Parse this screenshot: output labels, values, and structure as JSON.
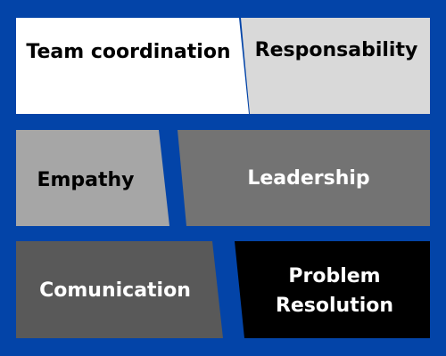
{
  "background_color": "#0344A8",
  "tiles": [
    {
      "id": "team-coordination",
      "label": "Team coordination",
      "fill": "#FFFFFF",
      "text_color": "#000000"
    },
    {
      "id": "responsability",
      "label": "Responsability",
      "fill": "#D9D9D9",
      "text_color": "#000000"
    },
    {
      "id": "empathy",
      "label": "Empathy",
      "fill": "#A6A6A6",
      "text_color": "#000000"
    },
    {
      "id": "leadership",
      "label": "Leadership",
      "fill": "#737373",
      "text_color": "#FFFFFF"
    },
    {
      "id": "comunication",
      "label": "Comunication",
      "fill": "#595959",
      "text_color": "#FFFFFF"
    },
    {
      "id": "problem-resolution",
      "label": "Problem\nResolution",
      "fill": "#000000",
      "text_color": "#FFFFFF"
    }
  ]
}
